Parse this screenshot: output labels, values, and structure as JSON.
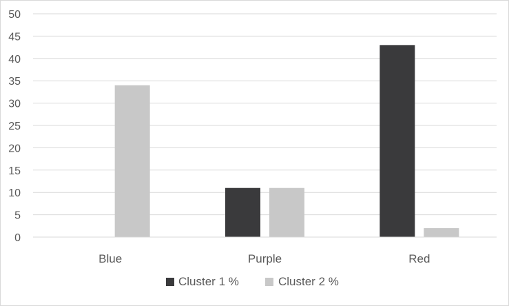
{
  "chart_data": {
    "type": "bar",
    "categories": [
      "Blue",
      "Purple",
      "Red"
    ],
    "series": [
      {
        "name": "Cluster 1 %",
        "values": [
          0,
          11,
          43
        ],
        "color": "#3a3a3c"
      },
      {
        "name": "Cluster 2 %",
        "values": [
          34,
          11,
          2
        ],
        "color": "#c8c8c8"
      }
    ],
    "ylim": [
      0,
      50
    ],
    "yticks": [
      0,
      5,
      10,
      15,
      20,
      25,
      30,
      35,
      40,
      45,
      50
    ],
    "grid": true,
    "legend_position": "bottom",
    "title": "",
    "xlabel": "",
    "ylabel": ""
  }
}
